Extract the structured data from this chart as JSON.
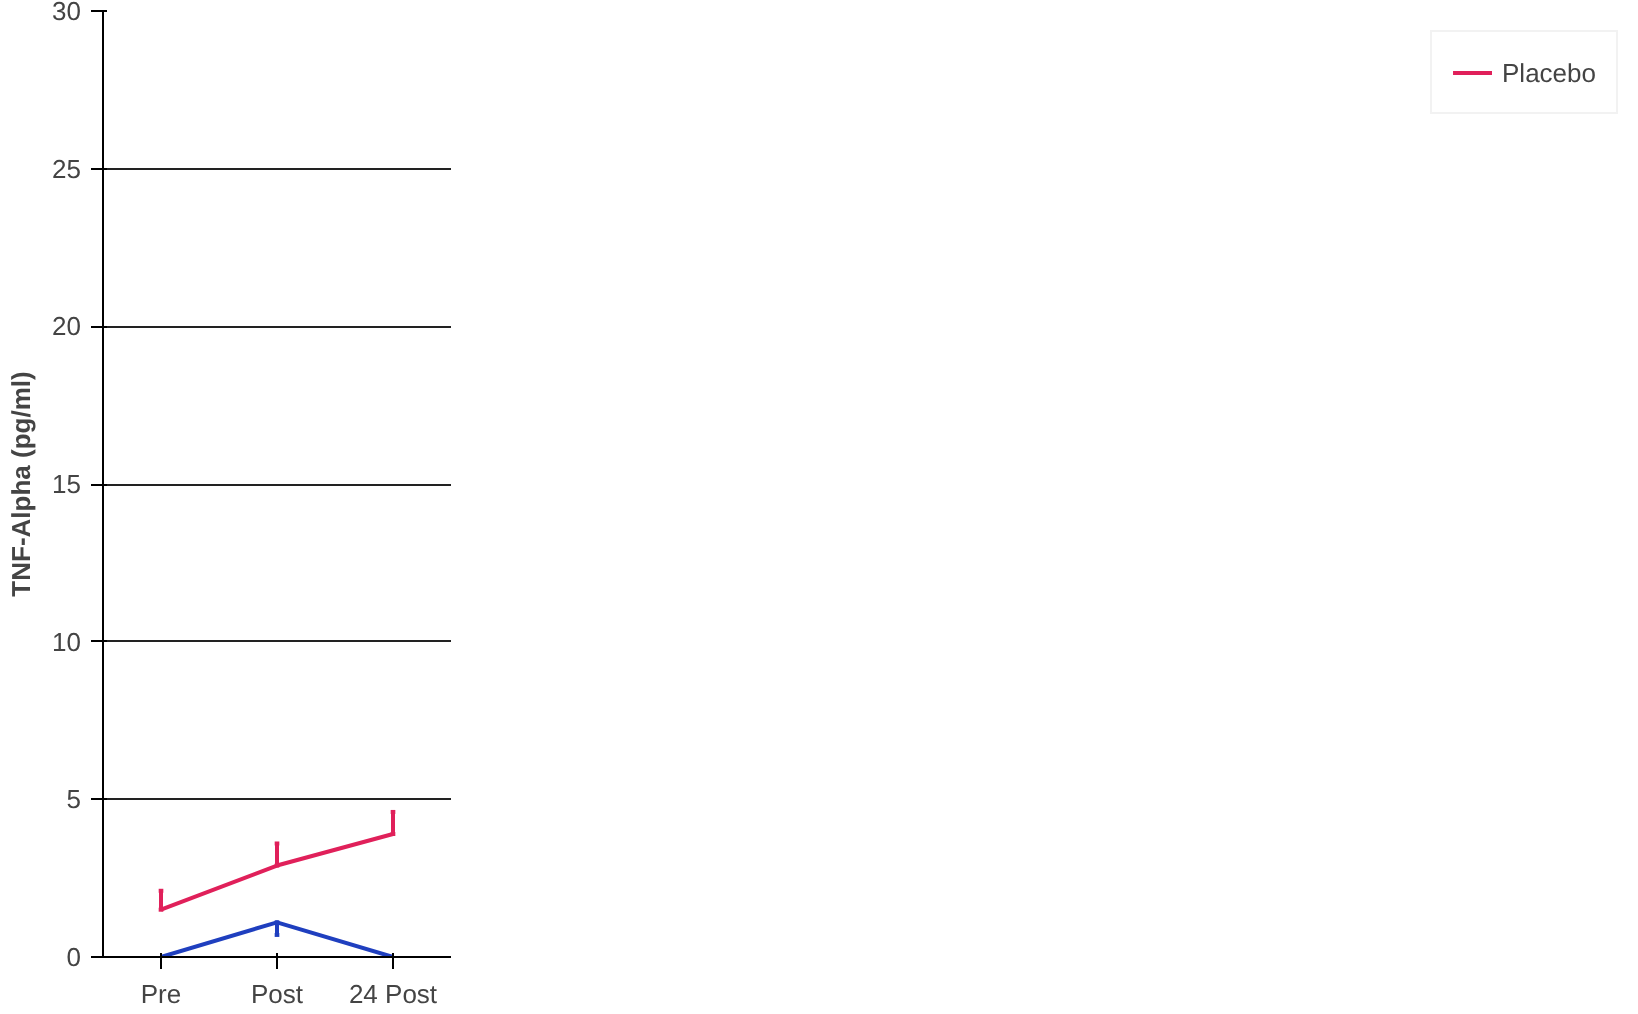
{
  "chart_data": {
    "type": "line",
    "ylabel": "TNF-Alpha (pg/ml)",
    "categories": [
      "Pre",
      "Post",
      "24 Post"
    ],
    "ylim": [
      0,
      30
    ],
    "yticks": [
      0,
      5,
      10,
      15,
      20,
      25,
      30
    ],
    "grid": "y",
    "legend": "right",
    "marker": "none",
    "line_style": "solid",
    "series": [
      {
        "color": "#1f3fbf",
        "values": [
          0,
          1.1,
          0
        ],
        "errors": [
          null,
          [
            0.7,
            1.1
          ],
          null
        ]
      },
      {
        "name": "Placebo",
        "color": "#e0205a",
        "values": [
          1.5,
          2.9,
          3.9
        ],
        "errors": [
          [
            1.5,
            2.1
          ],
          [
            2.9,
            3.6
          ],
          [
            3.9,
            4.6
          ]
        ]
      }
    ]
  }
}
